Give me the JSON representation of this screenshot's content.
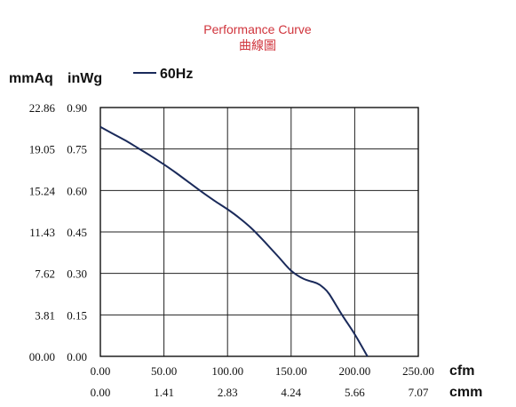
{
  "chart_data": {
    "type": "line",
    "title": "Performance Curve",
    "subtitle": "曲線圖",
    "y_unit_primary": "mmAq",
    "y_unit_secondary": "inWg",
    "x_unit_primary": "cfm",
    "x_unit_secondary": "cmm",
    "x_ticks_primary": [
      "0.00",
      "50.00",
      "100.00",
      "150.00",
      "200.00",
      "250.00"
    ],
    "x_ticks_secondary": [
      "0.00",
      "1.41",
      "2.83",
      "4.24",
      "5.66",
      "7.07"
    ],
    "y_ticks_primary": [
      "00.00",
      "3.81",
      "7.62",
      "11.43",
      "15.24",
      "19.05",
      "22.86"
    ],
    "y_ticks_secondary": [
      "0.00",
      "0.15",
      "0.30",
      "0.45",
      "0.60",
      "0.75",
      "0.90"
    ],
    "xlim": [
      0,
      250
    ],
    "ylim": [
      0,
      0.9
    ],
    "grid": true,
    "legend_position": "top-left",
    "series": [
      {
        "name": "60Hz",
        "color": "#1a2a5a",
        "points": [
          [
            0,
            0.83
          ],
          [
            10,
            0.805
          ],
          [
            20,
            0.78
          ],
          [
            30,
            0.752
          ],
          [
            40,
            0.724
          ],
          [
            50,
            0.694
          ],
          [
            60,
            0.662
          ],
          [
            70,
            0.628
          ],
          [
            80,
            0.594
          ],
          [
            90,
            0.562
          ],
          [
            100,
            0.532
          ],
          [
            110,
            0.498
          ],
          [
            120,
            0.458
          ],
          [
            130,
            0.41
          ],
          [
            140,
            0.36
          ],
          [
            150,
            0.31
          ],
          [
            160,
            0.28
          ],
          [
            170,
            0.265
          ],
          [
            175,
            0.25
          ],
          [
            180,
            0.225
          ],
          [
            190,
            0.15
          ],
          [
            200,
            0.08
          ],
          [
            210,
            0.0
          ]
        ]
      }
    ]
  }
}
